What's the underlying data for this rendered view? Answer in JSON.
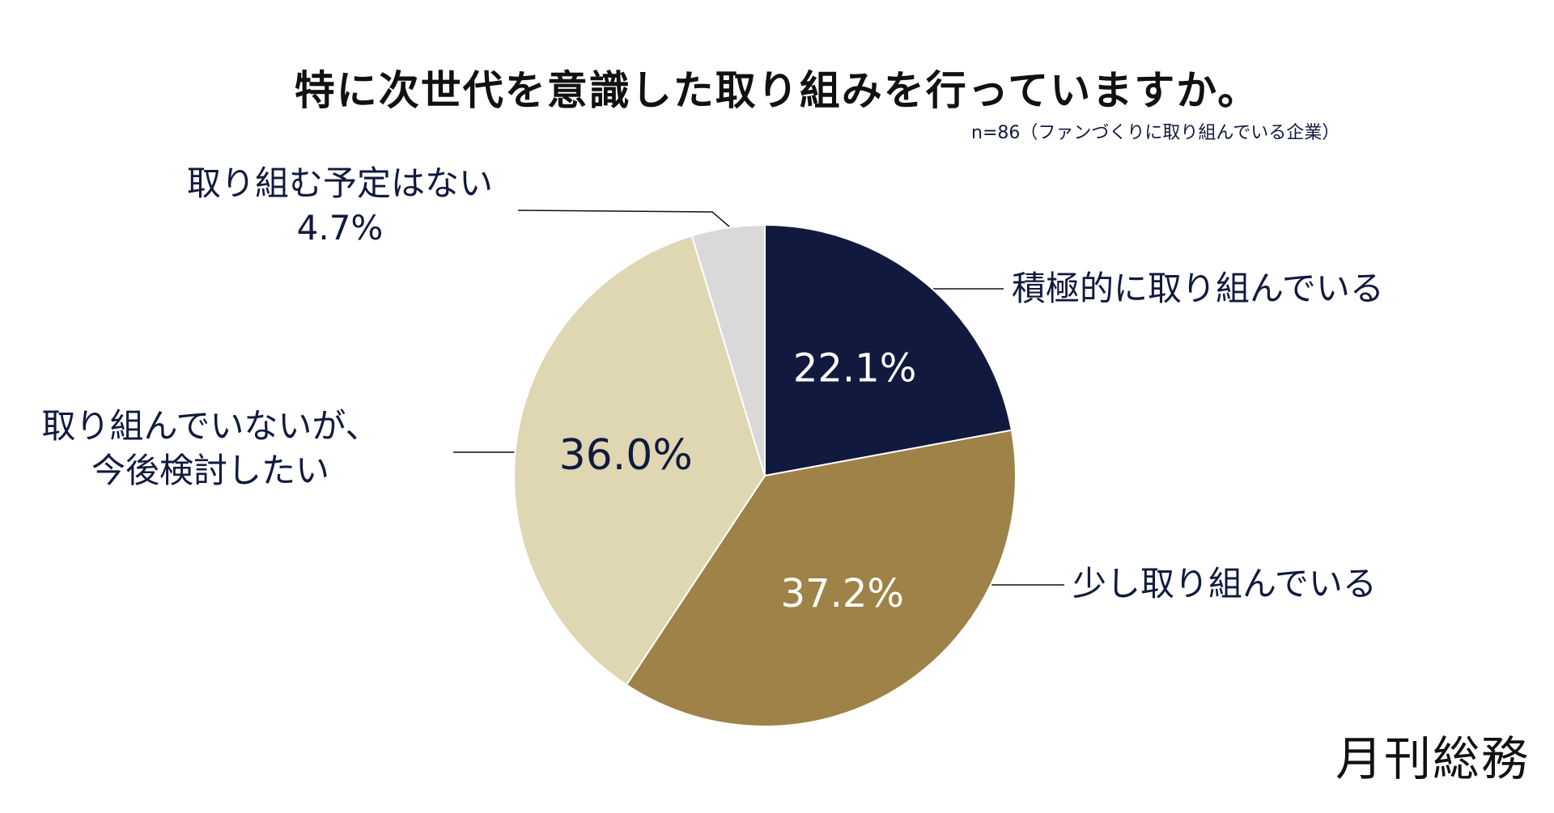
{
  "chart_data": {
    "type": "pie",
    "title": "特に次世代を意識した取り組みを行っていますか。",
    "subtitle": "n=86（ファンづくりに取り組んでいる企業）",
    "categories": [
      "積極的に取り組んでいる",
      "少し取り組んでいる",
      "取り組んでいないが、今後検討したい",
      "取り組む予定はない"
    ],
    "values": [
      22.1,
      37.2,
      36.0,
      4.7
    ],
    "value_labels": [
      "22.1%",
      "37.2%",
      "36.0%",
      "4.7%"
    ],
    "colors": [
      "#111a3e",
      "#9e8247",
      "#dfd6b2",
      "#d9d9d9"
    ],
    "label_text_colors": [
      "#ffffff",
      "#ffffff",
      "#111a3e",
      "#111a3e"
    ],
    "start_angle": "12 o'clock",
    "direction": "clockwise"
  },
  "labels": {
    "sekkyoku": "積極的に取り組んでいる",
    "sukoshi": "少し取り組んでいる",
    "kentou_line1": "取り組んでいないが、",
    "kentou_line2": "今後検討したい",
    "yotei_line1": "取り組む予定はない",
    "yotei_line2": "4.7%"
  },
  "brand": {
    "logo_text": "月刊総務"
  }
}
